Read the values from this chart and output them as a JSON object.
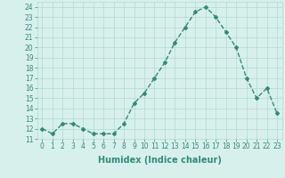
{
  "x": [
    0,
    1,
    2,
    3,
    4,
    5,
    6,
    7,
    8,
    9,
    10,
    11,
    12,
    13,
    14,
    15,
    16,
    17,
    18,
    19,
    20,
    21,
    22,
    23
  ],
  "y": [
    12,
    11.5,
    12.5,
    12.5,
    12,
    11.5,
    11.5,
    11.5,
    12.5,
    14.5,
    15.5,
    17,
    18.5,
    20.5,
    22,
    23.5,
    24,
    23,
    21.5,
    20,
    17,
    15,
    16,
    13.5
  ],
  "line_color": "#2e8b7a",
  "marker": "D",
  "marker_size": 2.0,
  "bg_color": "#d8f0ec",
  "grid_color": "#b0d8d2",
  "xlabel": "Humidex (Indice chaleur)",
  "xlim": [
    -0.5,
    23.5
  ],
  "ylim": [
    11,
    24.5
  ],
  "yticks": [
    11,
    12,
    13,
    14,
    15,
    16,
    17,
    18,
    19,
    20,
    21,
    22,
    23,
    24
  ],
  "xticks": [
    0,
    1,
    2,
    3,
    4,
    5,
    6,
    7,
    8,
    9,
    10,
    11,
    12,
    13,
    14,
    15,
    16,
    17,
    18,
    19,
    20,
    21,
    22,
    23
  ],
  "xtick_labels": [
    "0",
    "1",
    "2",
    "3",
    "4",
    "5",
    "6",
    "7",
    "8",
    "9",
    "10",
    "11",
    "12",
    "13",
    "14",
    "15",
    "16",
    "17",
    "18",
    "19",
    "20",
    "21",
    "22",
    "23"
  ],
  "ytick_labels": [
    "11",
    "12",
    "13",
    "14",
    "15",
    "16",
    "17",
    "18",
    "19",
    "20",
    "21",
    "22",
    "23",
    "24"
  ],
  "font_color": "#2e8b7a",
  "tick_fontsize": 5.5,
  "xlabel_fontsize": 7.0,
  "line_width": 1.0
}
